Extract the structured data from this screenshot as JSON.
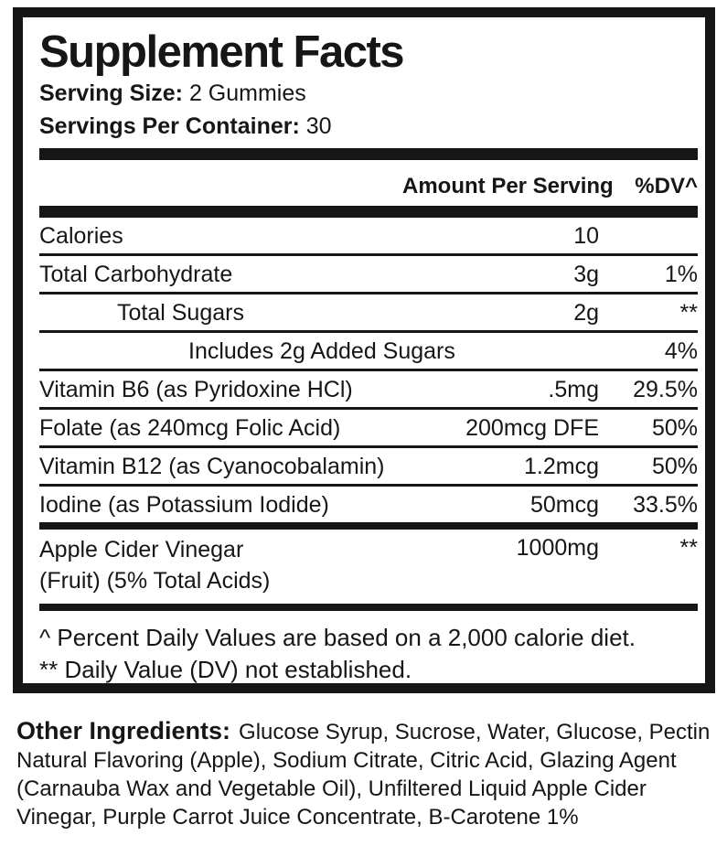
{
  "panel": {
    "title": "Supplement Facts",
    "serving_size_label": "Serving Size:",
    "serving_size_value": "2 Gummies",
    "servings_label": "Servings Per Container:",
    "servings_value": "30",
    "columns": {
      "amount": "Amount Per Serving",
      "dv": "%DV^"
    },
    "rows": [
      {
        "label": "Calories",
        "amount": "10",
        "dv": ""
      },
      {
        "label": "Total Carbohydrate",
        "amount": "3g",
        "dv": "1%"
      },
      {
        "label": "Total Sugars",
        "amount": "2g",
        "dv": "**"
      },
      {
        "label": "Includes 2g Added Sugars",
        "amount": "",
        "dv": "4%"
      },
      {
        "label": "Vitamin B6 (as Pyridoxine HCl)",
        "amount": ".5mg",
        "dv": "29.5%"
      },
      {
        "label": "Folate (as 240mcg Folic Acid)",
        "amount": "200mcg DFE",
        "dv": "50%"
      },
      {
        "label": "Vitamin B12 (as Cyanocobalamin)",
        "amount": "1.2mcg",
        "dv": "50%"
      },
      {
        "label": "Iodine (as Potassium Iodide)",
        "amount": "50mcg",
        "dv": "33.5%"
      },
      {
        "label": "Apple Cider Vinegar",
        "label_line2": "(Fruit) (5% Total Acids)",
        "amount": "1000mg",
        "dv": "**"
      }
    ],
    "footnotes": [
      "^ Percent Daily Values are based on a 2,000 calorie diet.",
      "** Daily Value (DV) not established."
    ]
  },
  "other_ingredients": {
    "heading": "Other Ingredients:",
    "text": "Glucose Syrup, Sucrose, Water, Glucose, Pectin Natural Flavoring (Apple), Sodium Citrate, Citric Acid, Glazing Agent (Carnauba Wax and Vegetable Oil), Unfiltered Liquid Apple Cider Vinegar, Purple Carrot Juice Concentrate, B-Carotene 1%"
  },
  "colors": {
    "ink": "#161616",
    "background": "#ffffff"
  }
}
